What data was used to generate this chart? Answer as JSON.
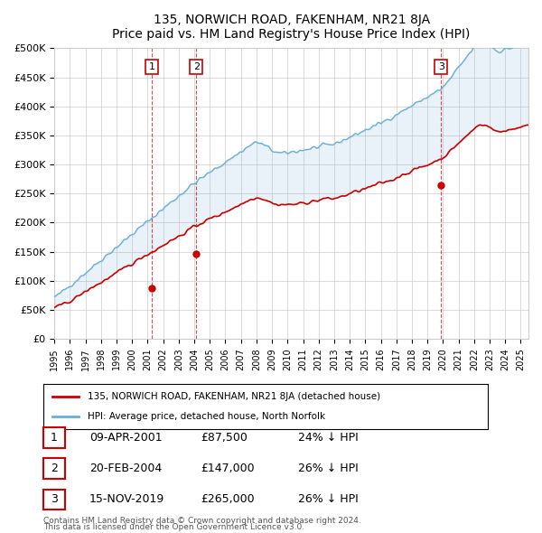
{
  "title": "135, NORWICH ROAD, FAKENHAM, NR21 8JA",
  "subtitle": "Price paid vs. HM Land Registry's House Price Index (HPI)",
  "ylabel": "",
  "ylim": [
    0,
    500000
  ],
  "yticks": [
    0,
    50000,
    100000,
    150000,
    200000,
    250000,
    300000,
    350000,
    400000,
    450000,
    500000
  ],
  "ytick_labels": [
    "£0",
    "£50K",
    "£100K",
    "£150K",
    "£200K",
    "£250K",
    "£300K",
    "£350K",
    "£400K",
    "£450K",
    "£500K"
  ],
  "hpi_color": "#6aaed6",
  "price_color": "#cc0000",
  "vline_color": "#cc0000",
  "grid_color": "#cccccc",
  "background_color": "#ffffff",
  "transactions": [
    {
      "label": "1",
      "date_x": 2001.27,
      "price": 87500,
      "pct": "24%",
      "date_str": "09-APR-2001"
    },
    {
      "label": "2",
      "date_x": 2004.13,
      "price": 147000,
      "pct": "26%",
      "date_str": "20-FEB-2004"
    },
    {
      "label": "3",
      "date_x": 2019.88,
      "price": 265000,
      "pct": "26%",
      "date_str": "15-NOV-2019"
    }
  ],
  "legend_property_label": "135, NORWICH ROAD, FAKENHAM, NR21 8JA (detached house)",
  "legend_hpi_label": "HPI: Average price, detached house, North Norfolk",
  "footer1": "Contains HM Land Registry data © Crown copyright and database right 2024.",
  "footer2": "This data is licensed under the Open Government Licence v3.0.",
  "xmin": 1995.0,
  "xmax": 2025.5
}
